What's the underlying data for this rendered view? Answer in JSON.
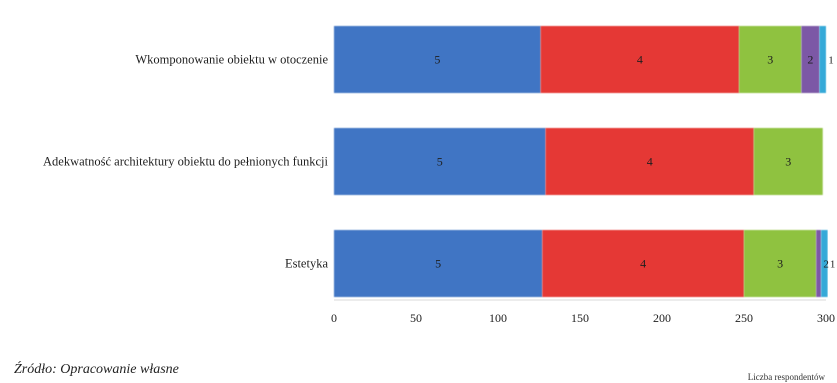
{
  "chart_data": {
    "type": "bar",
    "orientation": "horizontal",
    "stacked": true,
    "categories": [
      "Wkomponowanie obiektu w otoczenie",
      "Adekwatność architektury obiektu do pełnionych funkcji",
      "Estetyka"
    ],
    "series": [
      {
        "name": "5",
        "color": "#3f74c4",
        "values": [
          126,
          129,
          127
        ]
      },
      {
        "name": "4",
        "color": "#e53836",
        "values": [
          121,
          127,
          123
        ]
      },
      {
        "name": "3",
        "color": "#8fc23f",
        "values": [
          38,
          42,
          44
        ]
      },
      {
        "name": "2",
        "color": "#7b58a6",
        "values": [
          11,
          0,
          3
        ]
      },
      {
        "name": "1",
        "color": "#34a9d8",
        "values": [
          4,
          0,
          4
        ]
      }
    ],
    "xlim": [
      0,
      300
    ],
    "xticks": [
      "0",
      "50",
      "100",
      "150",
      "200",
      "250",
      "300"
    ],
    "xlabel": "Liczba respondentów",
    "grid": false
  },
  "source": "Źródło: Opracowanie własne"
}
